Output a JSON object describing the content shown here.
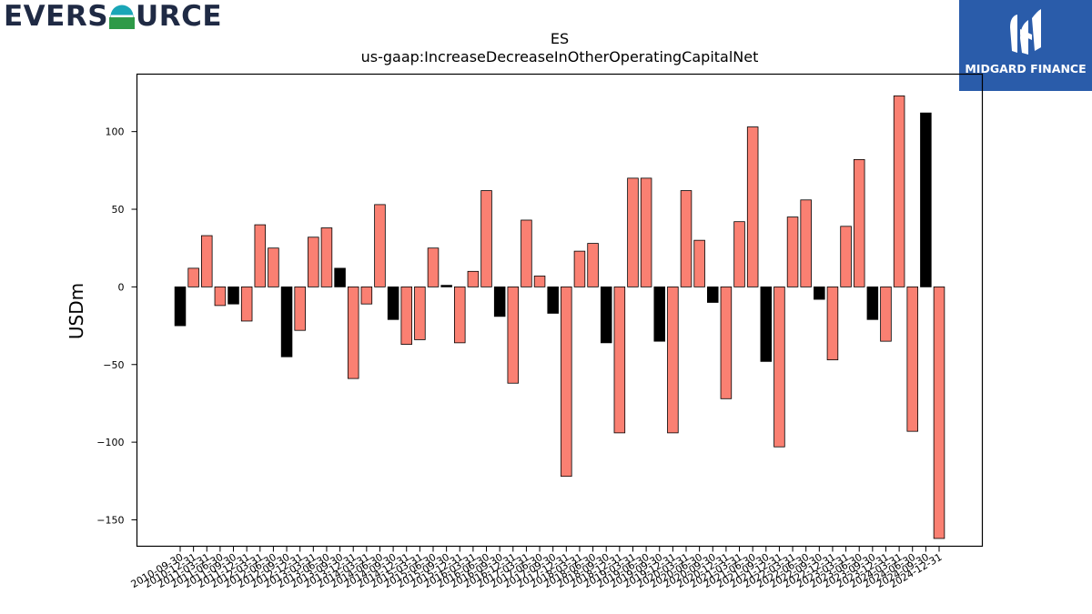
{
  "brand": {
    "left_logo_text_a": "EVERS",
    "left_logo_text_b": "URCE",
    "right_logo_text": "MIDGARD FINANCE"
  },
  "colors": {
    "positive_bar": "#fa8072",
    "negative_bar_q3": "#000000",
    "evers_teal": "#1aa6b7",
    "evers_green": "#2e9a48",
    "midgard_blue": "#2a5caa"
  },
  "chart_data": {
    "type": "bar",
    "title": "ES",
    "subtitle": "us-gaap:IncreaseDecreaseInOtherOperatingCapitalNet",
    "xlabel": "",
    "ylabel": "USDm",
    "ylim": [
      -167,
      137
    ],
    "yticks": [
      100,
      50,
      0,
      -50,
      -100,
      -150
    ],
    "grid": false,
    "categories": [
      "2010-09-30",
      "2010-12-31",
      "2011-03-31",
      "2011-06-30",
      "2011-09-30",
      "2011-12-31",
      "2012-03-31",
      "2012-06-30",
      "2012-09-30",
      "2012-12-31",
      "2013-03-31",
      "2013-06-30",
      "2013-09-30",
      "2013-12-31",
      "2014-03-31",
      "2014-06-30",
      "2014-09-30",
      "2014-12-31",
      "2015-03-31",
      "2015-06-30",
      "2015-09-30",
      "2015-12-31",
      "2016-03-31",
      "2016-06-30",
      "2016-09-30",
      "2016-12-31",
      "2017-03-31",
      "2017-06-30",
      "2017-09-30",
      "2017-12-31",
      "2018-03-31",
      "2018-06-30",
      "2018-09-30",
      "2018-12-31",
      "2019-03-31",
      "2019-06-30",
      "2019-09-30",
      "2019-12-31",
      "2020-03-31",
      "2020-06-30",
      "2020-09-30",
      "2020-12-31",
      "2021-03-31",
      "2021-06-30",
      "2021-09-30",
      "2021-12-31",
      "2022-03-31",
      "2022-06-30",
      "2022-09-30",
      "2022-12-31",
      "2023-03-31",
      "2023-06-30",
      "2023-09-30",
      "2023-12-31",
      "2024-03-31",
      "2024-06-30",
      "2024-09-30",
      "2024-12-31"
    ],
    "values": [
      -25,
      12,
      33,
      -12,
      -11,
      -22,
      40,
      25,
      -45,
      -28,
      32,
      38,
      12,
      -59,
      -11,
      53,
      -21,
      -37,
      -34,
      25,
      1,
      -36,
      10,
      62,
      -19,
      -62,
      43,
      7,
      -17,
      -122,
      23,
      28,
      -36,
      -94,
      70,
      70,
      -35,
      -94,
      62,
      30,
      -10,
      -72,
      42,
      103,
      -48,
      -103,
      45,
      56,
      -8,
      -47,
      39,
      82,
      -21,
      -35,
      123,
      -93,
      112,
      -162
    ]
  }
}
